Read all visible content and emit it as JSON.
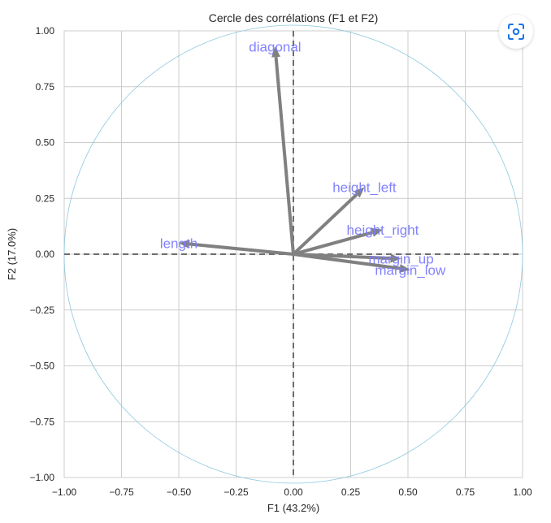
{
  "chart_data": {
    "type": "scatter",
    "title": "Cercle des corrélations (F1 et F2)",
    "xlabel": "F1 (43.2%)",
    "ylabel": "F2 (17.0%)",
    "xlim": [
      -1.0,
      1.0
    ],
    "ylim": [
      -1.0,
      1.0
    ],
    "grid": true,
    "xticks": [
      "−1.00",
      "−0.75",
      "−0.50",
      "−0.25",
      "0.00",
      "0.25",
      "0.50",
      "0.75",
      "1.00"
    ],
    "yticks": [
      "1.00",
      "0.75",
      "0.50",
      "0.25",
      "0.00",
      "−0.25",
      "−0.50",
      "−0.75",
      "−1.00"
    ],
    "xtick_values": [
      -1.0,
      -0.75,
      -0.5,
      -0.25,
      0.0,
      0.25,
      0.5,
      0.75,
      1.0
    ],
    "ytick_values": [
      1.0,
      0.75,
      0.5,
      0.25,
      0.0,
      -0.25,
      -0.5,
      -0.75,
      -1.0
    ],
    "arrows": [
      {
        "name": "diagonal",
        "x": -0.08,
        "y": 0.93
      },
      {
        "name": "height_left",
        "x": 0.31,
        "y": 0.3
      },
      {
        "name": "height_right",
        "x": 0.39,
        "y": 0.11
      },
      {
        "name": "margin_up",
        "x": 0.47,
        "y": -0.02
      },
      {
        "name": "margin_low",
        "x": 0.51,
        "y": -0.07
      },
      {
        "name": "length",
        "x": -0.5,
        "y": 0.05
      }
    ],
    "unit_circle": true,
    "colors": {
      "arrow": "#808080",
      "label": "#7b7bff",
      "circle": "#8ec9e0",
      "grid": "#cccccc",
      "axis_lines": "#6e6e6e"
    }
  },
  "ui": {
    "lens_button": {
      "icon": "visual-search-icon"
    }
  }
}
